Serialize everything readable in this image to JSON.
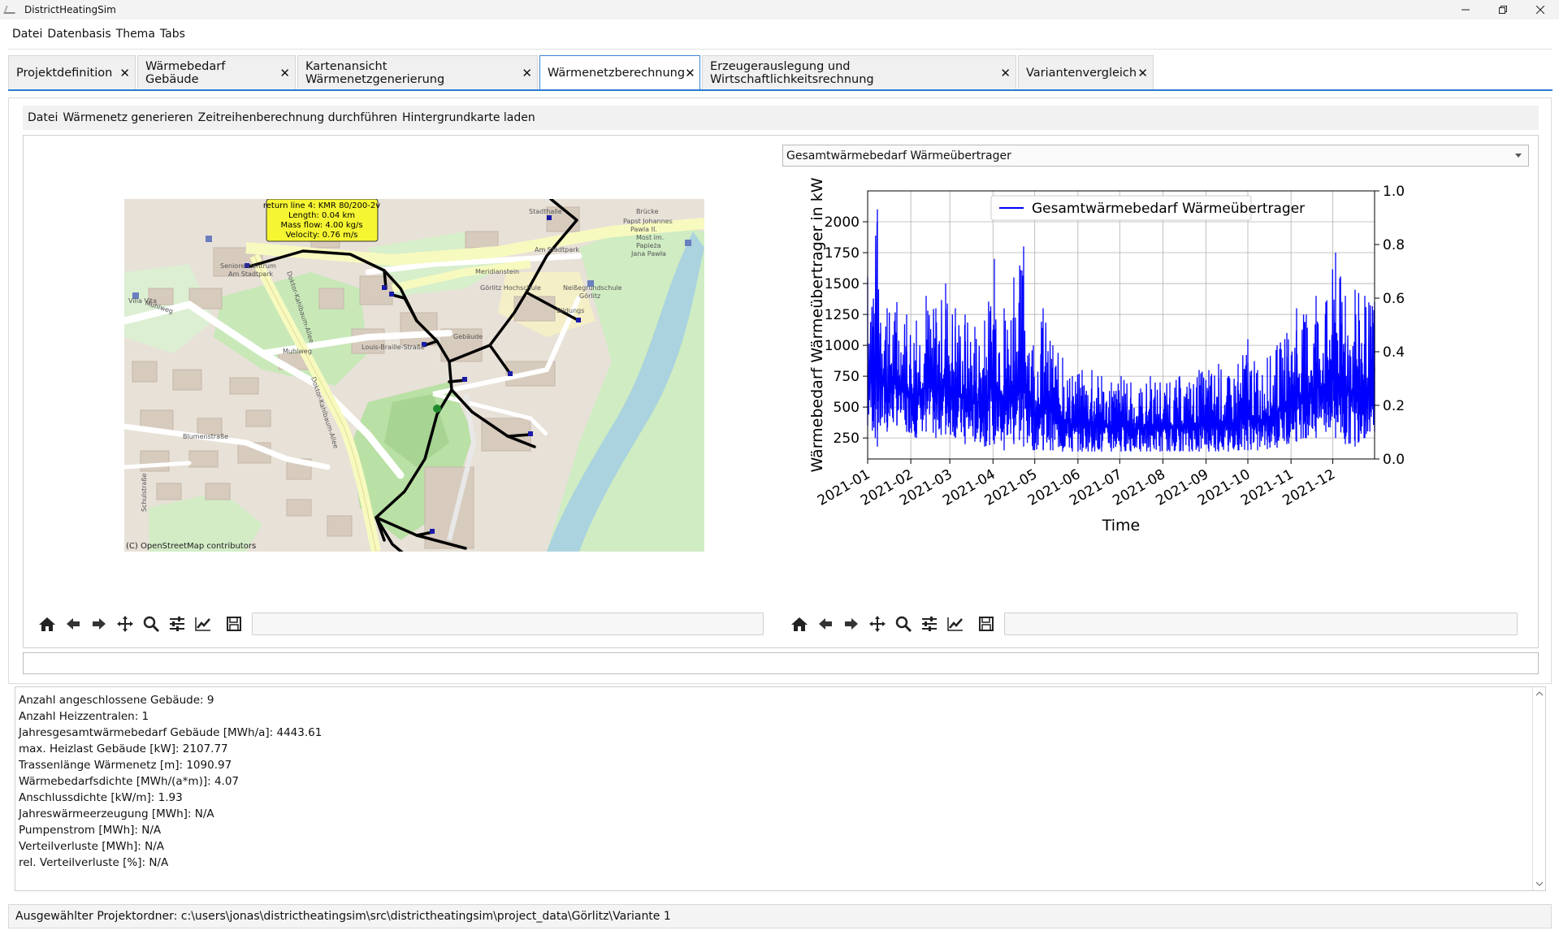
{
  "window": {
    "title": "DistrictHeatingSim"
  },
  "menubar": [
    "Datei",
    "Datenbasis",
    "Thema",
    "Tabs"
  ],
  "tabs": [
    {
      "label": "Projektdefinition",
      "active": false
    },
    {
      "label": "Wärmebedarf Gebäude",
      "active": false
    },
    {
      "label": "Kartenansicht Wärmenetzgenerierung",
      "active": false
    },
    {
      "label": "Wärmenetzberechnung",
      "active": true
    },
    {
      "label": "Erzeugerauslegung und Wirtschaftlichkeitsrechnung",
      "active": false
    },
    {
      "label": "Variantenvergleich",
      "active": false
    }
  ],
  "submenu": [
    "Datei",
    "Wärmenetz generieren",
    "Zeitreihenberechnung durchführen",
    "Hintergrundkarte laden"
  ],
  "map": {
    "tooltip": {
      "line1": "return line 4: KMR 80/200-2v",
      "line2": "Length: 0.04 km",
      "line3": "Mass flow: 4.00 kg/s",
      "line4": "Velocity: 0.76 m/s"
    },
    "attribution": "(C) OpenStreetMap contributors",
    "labels": {
      "senioren": "Seniorenzentrum",
      "amstadtpark": "Am Stadtpark",
      "stadtpark": "Am Stadtpark",
      "bruecke": "Brücke",
      "papst": "Papst Johannes",
      "pawla": "Pawla II.",
      "most": "Most im.",
      "papieza": "Papieża",
      "jana": "Jana Pawła",
      "muhlweg": "Muhlweg",
      "muhlweg2": "Muhlweg",
      "braille": "Louis-Braille-Straße",
      "kahlbaum": "Doktor-Kahlbaum-Allee",
      "kahlbaum2": "Doktor-Kahlbaum-Allee",
      "blumen": "Blumenstraße",
      "schul": "Schulstraße",
      "neisse": "Neißegrundschule",
      "goerlitz": "Görlitz",
      "bildung": "Bildungs",
      "hochschule": "Görlitz Hochschule",
      "gebaeude": "Gebäude",
      "villa": "Villa Vita",
      "meridian": "Meridianstein",
      "stadthalle": "Stadthalle"
    }
  },
  "dropdown": {
    "value": "Gesamtwärmebedarf Wärmeübertrager"
  },
  "chart_data": {
    "type": "line",
    "title": "",
    "xlabel": "Time",
    "ylabel": "Wärmebedarf Wärmeübertrager in kW",
    "x_ticks": [
      "2021-01",
      "2021-02",
      "2021-03",
      "2021-04",
      "2021-05",
      "2021-06",
      "2021-07",
      "2021-08",
      "2021-09",
      "2021-10",
      "2021-11",
      "2021-12"
    ],
    "y_ticks": [
      250,
      500,
      750,
      1000,
      1250,
      1500,
      1750,
      2000
    ],
    "y2_ticks": [
      0.0,
      0.2,
      0.4,
      0.6,
      0.8,
      1.0
    ],
    "y_tick_labels": [
      "250",
      "500",
      "750",
      "1000",
      "1250",
      "1500",
      "1750",
      "2000"
    ],
    "y2_tick_labels": [
      "0.0",
      "0.2",
      "0.4",
      "0.6",
      "0.8",
      "1.0"
    ],
    "ylim": [
      80,
      2250
    ],
    "y2lim": [
      0.0,
      1.0
    ],
    "grid": true,
    "legend": "top-center",
    "series": [
      {
        "name": "Gesamtwärmebedarf Wärmeübertrager",
        "color": "#0000ff",
        "x": [
          "2021-01-01",
          "2021-01-08",
          "2021-01-15",
          "2021-01-22",
          "2021-01-29",
          "2021-02-05",
          "2021-02-12",
          "2021-02-19",
          "2021-02-26",
          "2021-03-05",
          "2021-03-12",
          "2021-03-19",
          "2021-03-26",
          "2021-04-02",
          "2021-04-09",
          "2021-04-16",
          "2021-04-23",
          "2021-04-30",
          "2021-05-07",
          "2021-05-14",
          "2021-05-21",
          "2021-05-28",
          "2021-06-04",
          "2021-06-11",
          "2021-06-18",
          "2021-06-25",
          "2021-07-02",
          "2021-07-09",
          "2021-07-16",
          "2021-07-23",
          "2021-07-30",
          "2021-08-06",
          "2021-08-13",
          "2021-08-20",
          "2021-08-27",
          "2021-09-03",
          "2021-09-10",
          "2021-09-17",
          "2021-09-24",
          "2021-10-01",
          "2021-10-08",
          "2021-10-15",
          "2021-10-22",
          "2021-10-29",
          "2021-11-05",
          "2021-11-12",
          "2021-11-19",
          "2021-11-26",
          "2021-12-03",
          "2021-12-10",
          "2021-12-17",
          "2021-12-24",
          "2021-12-31"
        ],
        "max": [
          1550,
          2100,
          1300,
          1350,
          1250,
          1200,
          1400,
          1300,
          1500,
          1300,
          1250,
          1150,
          1200,
          1700,
          1300,
          1550,
          1800,
          1000,
          1300,
          1000,
          900,
          750,
          800,
          800,
          750,
          700,
          750,
          700,
          650,
          750,
          700,
          700,
          750,
          700,
          800,
          800,
          850,
          750,
          850,
          1050,
          800,
          900,
          1000,
          1100,
          1300,
          1250,
          1400,
          1350,
          1750,
          1400,
          1450,
          1400,
          1350
        ],
        "min": [
          350,
          180,
          300,
          350,
          300,
          250,
          300,
          250,
          280,
          250,
          200,
          220,
          180,
          200,
          150,
          200,
          180,
          150,
          150,
          150,
          140,
          140,
          140,
          140,
          140,
          140,
          140,
          140,
          140,
          140,
          140,
          140,
          140,
          140,
          140,
          140,
          140,
          140,
          150,
          150,
          150,
          160,
          170,
          200,
          220,
          250,
          250,
          300,
          250,
          200,
          180,
          250,
          300
        ]
      }
    ]
  },
  "info": [
    "Anzahl angeschlossene Gebäude: 9",
    "Anzahl Heizzentralen: 1",
    "Jahresgesamtwärmebedarf Gebäude [MWh/a]: 4443.61",
    "max. Heizlast Gebäude [kW]: 2107.77",
    "Trassenlänge Wärmenetz [m]: 1090.97",
    "Wärmebedarfsdichte [MWh/(a*m)]: 4.07",
    "Anschlussdichte [kW/m]: 1.93",
    "Jahreswärmeerzeugung [MWh]: N/A",
    "Pumpenstrom [MWh]: N/A",
    "Verteilverluste [MWh]: N/A",
    "rel. Verteilverluste [%]: N/A"
  ],
  "status": "Ausgewählter Projektordner: c:\\users\\jonas\\districtheatingsim\\src\\districtheatingsim\\project_data\\Görlitz\\Variante 1"
}
